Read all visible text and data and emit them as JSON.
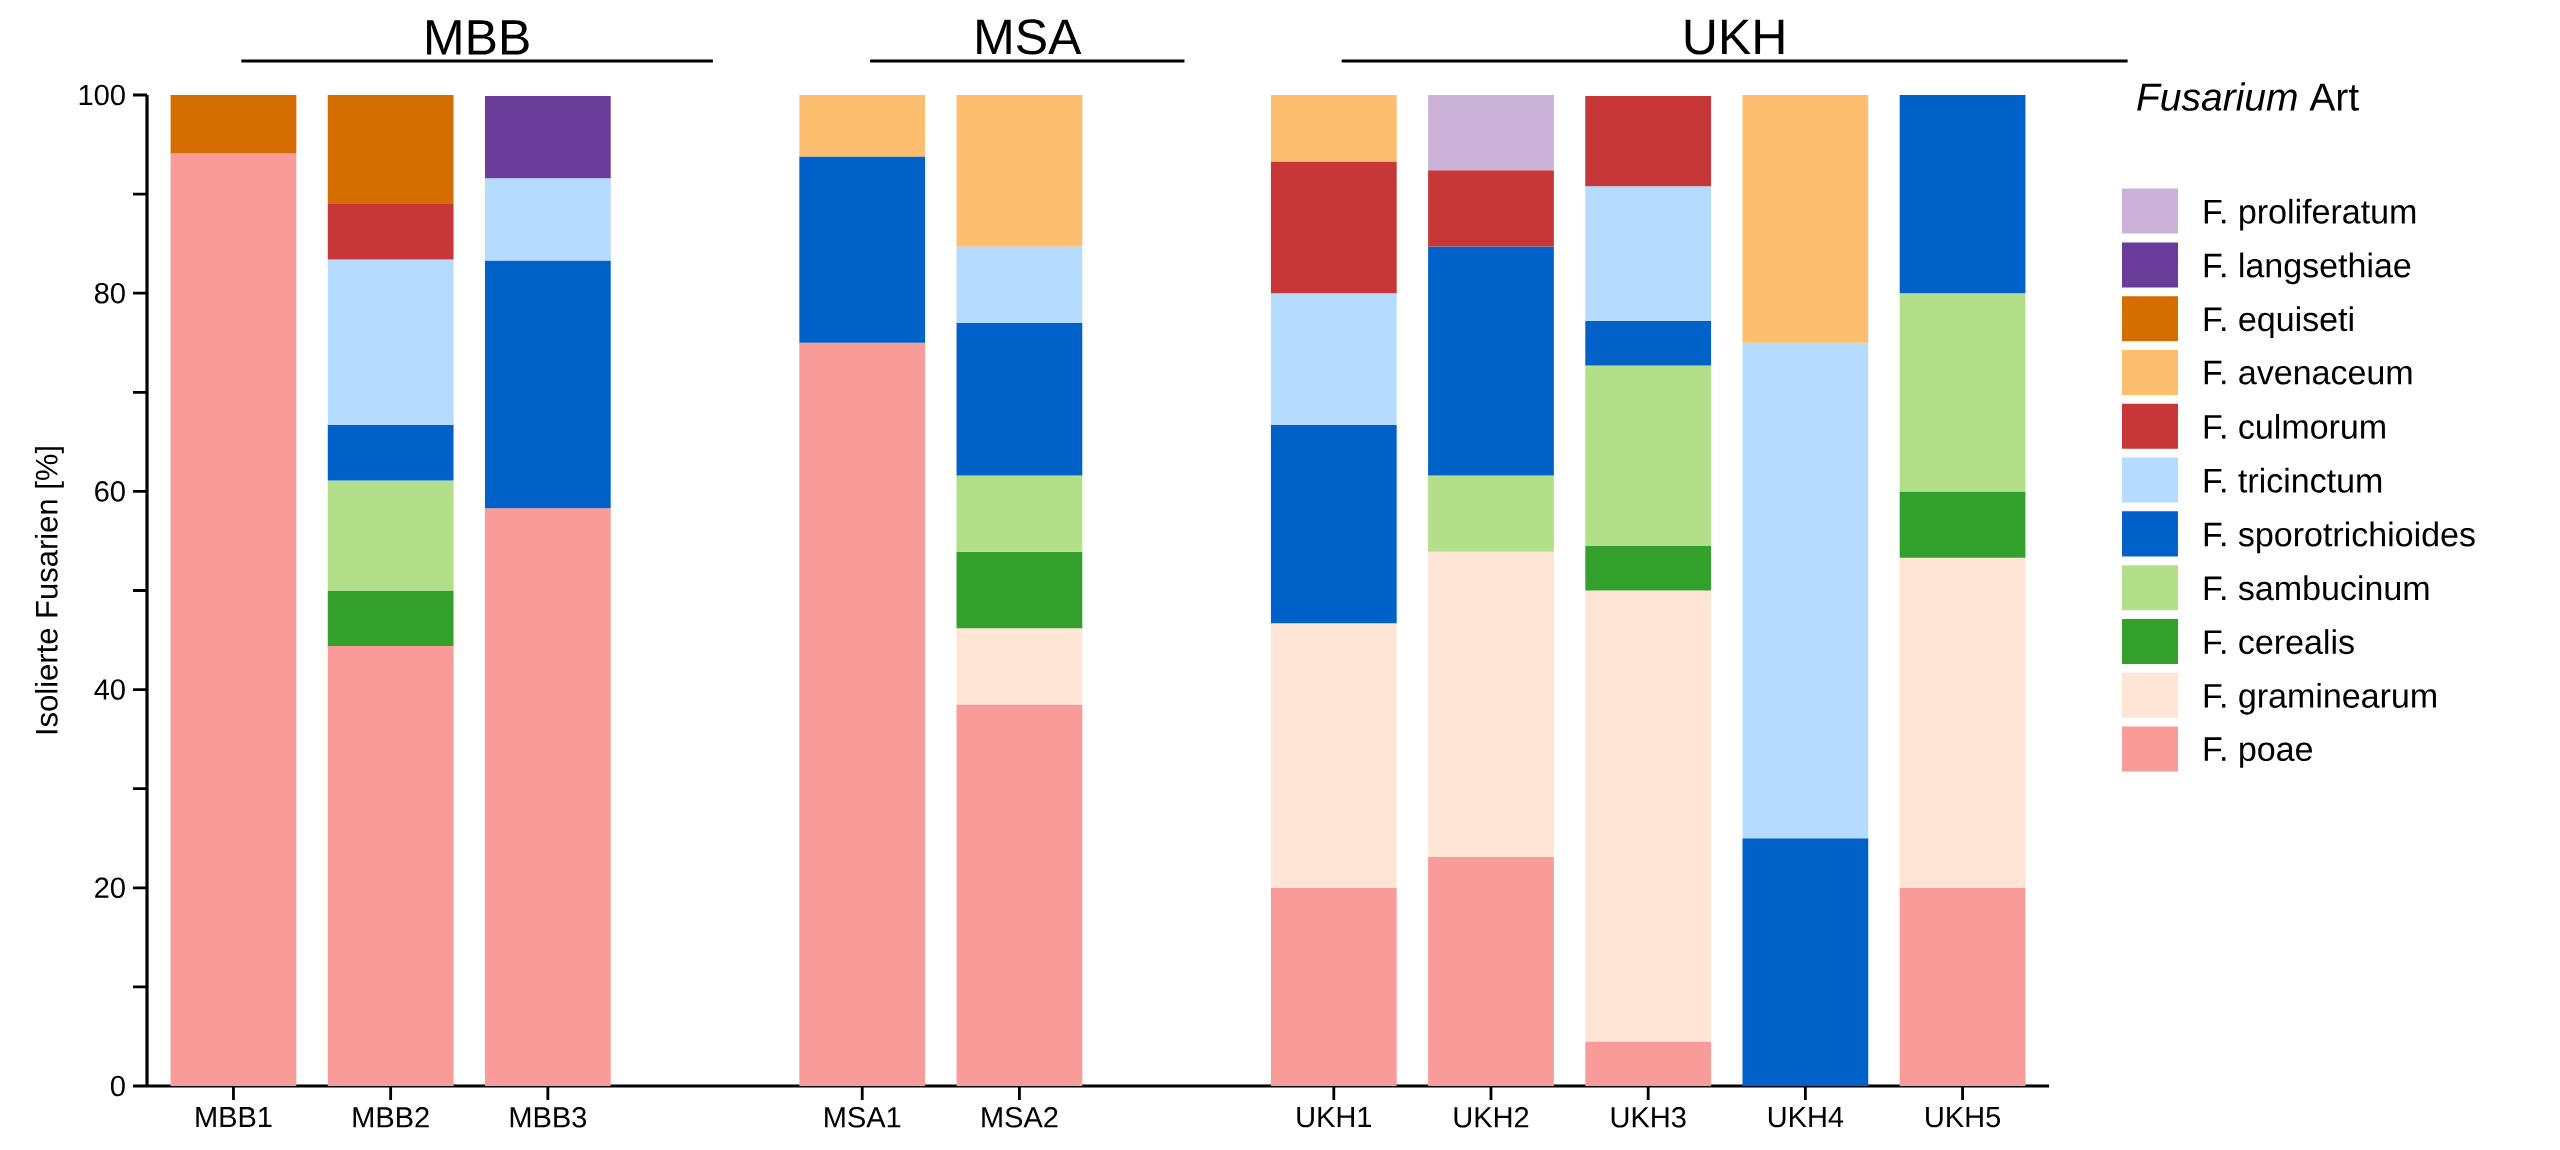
{
  "chart_data": {
    "type": "bar",
    "stacked": true,
    "ylabel": "Isolierte Fusarien [%]",
    "legend_title": "*Fusarium* Art",
    "legend": "right",
    "categories": [
      "MBB1",
      "MBB2",
      "MBB3",
      null,
      "MSA1",
      "MSA2",
      null,
      "UKH1",
      "UKH2",
      "UKH3",
      "UKH4",
      "UKH5"
    ],
    "annotations": [
      "MBB",
      "MSA",
      "UKH"
    ],
    "ylim": [
      0,
      100
    ],
    "yticks": [
      0,
      {
        "value": 10,
        "label": null
      },
      20,
      {
        "value": 30,
        "label": null
      },
      40,
      {
        "value": 50,
        "label": null
      },
      60,
      {
        "value": 70,
        "label": null
      },
      80,
      {
        "value": 90,
        "label": null
      },
      100
    ],
    "series": [
      {
        "name": "F. poae",
        "color": "#f89b99",
        "values": [
          94.1,
          44.4,
          58.3,
          null,
          75,
          38.5,
          null,
          20,
          23.1,
          4.5,
          null,
          20
        ]
      },
      {
        "name": "F. graminearum",
        "color": "#fee5d5",
        "values": [
          null,
          null,
          null,
          null,
          null,
          7.7,
          null,
          26.7,
          30.8,
          45.5,
          null,
          33.3
        ]
      },
      {
        "name": "F. cerealis",
        "color": "#33a02c",
        "values": [
          null,
          5.6,
          null,
          null,
          null,
          7.7,
          null,
          null,
          null,
          4.5,
          null,
          6.7
        ]
      },
      {
        "name": "F. sambucinum",
        "color": "#b3df8a",
        "values": [
          null,
          11.1,
          null,
          null,
          null,
          7.7,
          null,
          null,
          7.7,
          18.2,
          null,
          20
        ]
      },
      {
        "name": "F. sporotrichioides",
        "color": "#0062c8",
        "values": [
          null,
          5.6,
          25,
          null,
          18.8,
          15.4,
          null,
          20,
          23.1,
          4.5,
          25,
          20
        ]
      },
      {
        "name": "F. tricinctum",
        "color": "#b5dbfe",
        "values": [
          null,
          16.7,
          8.3,
          null,
          null,
          7.7,
          null,
          13.3,
          null,
          13.6,
          50,
          null
        ]
      },
      {
        "name": "F. culmorum",
        "color": "#c83737",
        "values": [
          null,
          5.6,
          null,
          null,
          null,
          null,
          null,
          13.3,
          7.7,
          9.1,
          null,
          null
        ]
      },
      {
        "name": "F. avenaceum",
        "color": "#fdbe6f",
        "values": [
          null,
          null,
          null,
          null,
          6.2,
          15.3,
          null,
          6.7,
          null,
          null,
          25,
          null
        ]
      },
      {
        "name": "F. equiseti",
        "color": "#d46e00",
        "values": [
          5.9,
          11.0,
          null,
          null,
          null,
          null,
          null,
          null,
          null,
          null,
          null,
          null
        ]
      },
      {
        "name": "F. langsethiae",
        "color": "#6a3d9a",
        "values": [
          null,
          null,
          8.3,
          null,
          null,
          null,
          null,
          null,
          null,
          null,
          null,
          null
        ]
      },
      {
        "name": "F. proliferatum",
        "color": "#c9b1d7",
        "values": [
          null,
          null,
          null,
          null,
          null,
          null,
          null,
          null,
          7.6,
          null,
          null,
          null
        ]
      }
    ]
  }
}
